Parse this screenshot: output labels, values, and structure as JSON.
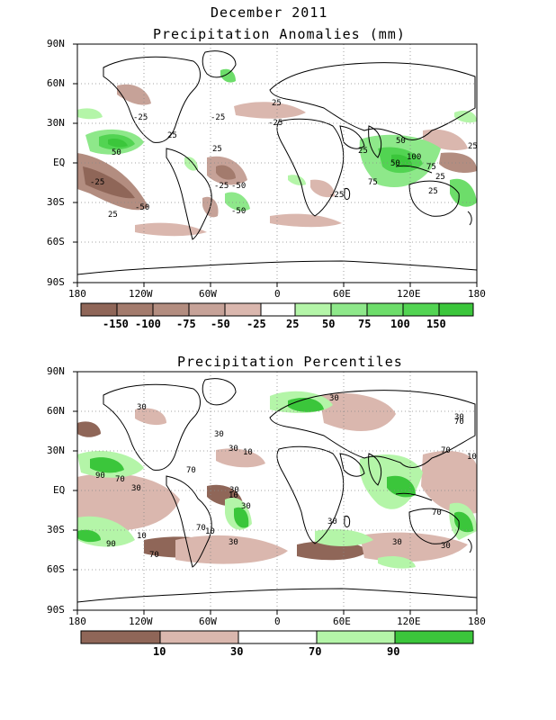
{
  "page": {
    "title": "December 2011"
  },
  "map_top": {
    "title": "Precipitation Anomalies (mm)",
    "lat_labels": [
      "90N",
      "60N",
      "30N",
      "EQ",
      "30S",
      "60S",
      "90S"
    ],
    "lon_labels": [
      "180",
      "120W",
      "60W",
      "0",
      "60E",
      "120E",
      "180"
    ],
    "colorbar": {
      "labels": [
        "-150",
        "-100",
        "-75",
        "-50",
        "-25",
        "25",
        "50",
        "75",
        "100",
        "150"
      ],
      "colors": [
        "#8f6658",
        "#a37b6d",
        "#b38d80",
        "#c6a298",
        "#dab7ae",
        "#ffffff",
        "#b4f5a8",
        "#8ee88a",
        "#6ddd6a",
        "#52d452",
        "#3bc63b"
      ]
    },
    "contour_labels": [
      "25",
      "-25",
      "50",
      "-50",
      "75",
      "100"
    ]
  },
  "map_bottom": {
    "title": "Precipitation Percentiles",
    "lat_labels": [
      "90N",
      "60N",
      "30N",
      "EQ",
      "30S",
      "60S",
      "90S"
    ],
    "lon_labels": [
      "180",
      "120W",
      "60W",
      "0",
      "60E",
      "120E",
      "180"
    ],
    "colorbar": {
      "labels": [
        "10",
        "30",
        "70",
        "90"
      ],
      "colors": [
        "#8f6658",
        "#dab7ae",
        "#ffffff",
        "#b4f5a8",
        "#3bc63b"
      ]
    },
    "contour_labels": [
      "10",
      "30",
      "70",
      "90"
    ]
  }
}
